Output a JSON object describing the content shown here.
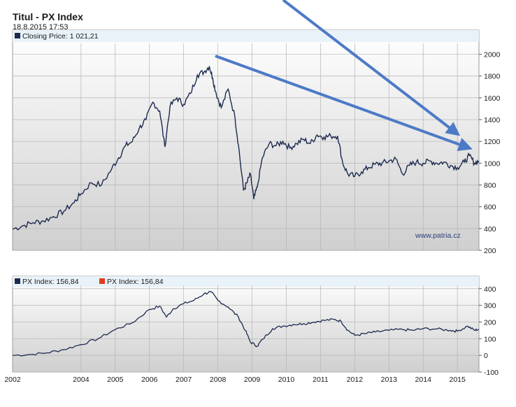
{
  "header": {
    "title": "Titul - PX Index",
    "date": "18.8.2015 17:53"
  },
  "watermark": "www.patria.cz",
  "colors": {
    "series": "#1c2a4e",
    "legend_red": "#e23b1e",
    "arrow": "#4d7ac7",
    "panel_top": "#ffffff",
    "panel_bottom": "#cfcfcf",
    "band": "#e8f2f8"
  },
  "chart_data": [
    {
      "type": "line",
      "legend": [
        "Closing Price: 1 021,21"
      ],
      "xlim": [
        2002.0,
        2015.63
      ],
      "ylim": [
        200,
        2100
      ],
      "y_ticks": [
        "200",
        "400",
        "600",
        "800",
        "1000",
        "1200",
        "1400",
        "1600",
        "1800",
        "2000"
      ],
      "x_tick_labels": [
        "2002",
        "2004",
        "2005",
        "2006",
        "2007",
        "2008",
        "2009",
        "2010",
        "2011",
        "2012",
        "2013",
        "2014",
        "2015"
      ],
      "series": [
        {
          "name": "Closing Price",
          "x": [
            2002.0,
            2002.3,
            2002.6,
            2002.9,
            2003.2,
            2003.5,
            2003.8,
            2004.0,
            2004.3,
            2004.6,
            2004.9,
            2005.1,
            2005.3,
            2005.5,
            2005.7,
            2005.9,
            2006.1,
            2006.3,
            2006.45,
            2006.6,
            2006.8,
            2007.0,
            2007.2,
            2007.4,
            2007.6,
            2007.75,
            2007.85,
            2007.95,
            2008.1,
            2008.3,
            2008.5,
            2008.6,
            2008.75,
            2008.85,
            2008.95,
            2009.05,
            2009.15,
            2009.3,
            2009.5,
            2009.7,
            2009.9,
            2010.1,
            2010.3,
            2010.5,
            2010.7,
            2010.9,
            2011.1,
            2011.3,
            2011.5,
            2011.65,
            2011.8,
            2012.0,
            2012.2,
            2012.4,
            2012.6,
            2012.8,
            2013.0,
            2013.2,
            2013.4,
            2013.6,
            2013.8,
            2014.0,
            2014.2,
            2014.4,
            2014.6,
            2014.8,
            2015.0,
            2015.2,
            2015.35,
            2015.5,
            2015.63
          ],
          "values": [
            395,
            425,
            455,
            470,
            510,
            560,
            640,
            720,
            820,
            800,
            950,
            1050,
            1160,
            1200,
            1320,
            1400,
            1560,
            1480,
            1150,
            1520,
            1600,
            1540,
            1640,
            1810,
            1840,
            1890,
            1780,
            1640,
            1510,
            1680,
            1420,
            1170,
            750,
            820,
            900,
            670,
            780,
            1050,
            1180,
            1160,
            1200,
            1140,
            1180,
            1220,
            1180,
            1260,
            1240,
            1250,
            1250,
            1000,
            900,
            880,
            920,
            960,
            990,
            1000,
            1020,
            1040,
            900,
            980,
            1010,
            1000,
            1020,
            1000,
            1010,
            980,
            960,
            1010,
            1070,
            1000,
            1021
          ]
        }
      ]
    },
    {
      "type": "line",
      "legend": [
        "PX Index: 156,84",
        "PX Index: 156,84"
      ],
      "xlim": [
        2002.0,
        2015.63
      ],
      "ylim": [
        -100,
        420
      ],
      "y_ticks": [
        "-100",
        "0",
        "100",
        "200",
        "300",
        "400"
      ],
      "series": [
        {
          "name": "PX Index",
          "x": [
            2002.0,
            2002.5,
            2003.0,
            2003.5,
            2004.0,
            2004.5,
            2005.0,
            2005.5,
            2006.0,
            2006.3,
            2006.5,
            2006.7,
            2007.0,
            2007.3,
            2007.6,
            2007.8,
            2008.0,
            2008.3,
            2008.6,
            2008.8,
            2008.95,
            2009.15,
            2009.3,
            2009.6,
            2009.9,
            2010.2,
            2010.5,
            2010.8,
            2011.1,
            2011.4,
            2011.6,
            2011.8,
            2012.0,
            2012.3,
            2012.6,
            2013.0,
            2013.4,
            2013.7,
            2014.0,
            2014.4,
            2014.8,
            2015.0,
            2015.3,
            2015.5,
            2015.63
          ],
          "values": [
            0,
            5,
            15,
            35,
            65,
            100,
            155,
            195,
            275,
            295,
            230,
            280,
            310,
            330,
            370,
            380,
            330,
            290,
            230,
            150,
            80,
            55,
            95,
            160,
            175,
            185,
            190,
            200,
            210,
            215,
            205,
            150,
            120,
            130,
            140,
            150,
            155,
            150,
            160,
            158,
            150,
            145,
            175,
            150,
            157
          ]
        }
      ]
    }
  ]
}
